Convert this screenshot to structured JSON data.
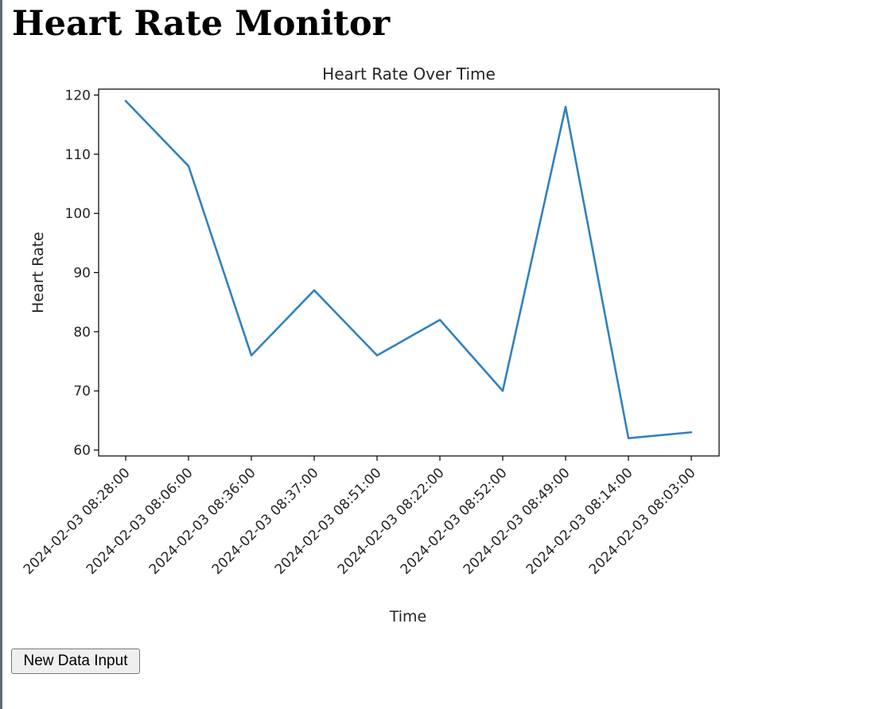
{
  "page": {
    "title": "Heart Rate Monitor"
  },
  "button": {
    "new_data_label": "New Data Input"
  },
  "chart_data": {
    "type": "line",
    "title": "Heart Rate Over Time",
    "xlabel": "Time",
    "ylabel": "Heart Rate",
    "categories": [
      "2024-02-03 08:28:00",
      "2024-02-03 08:06:00",
      "2024-02-03 08:36:00",
      "2024-02-03 08:37:00",
      "2024-02-03 08:51:00",
      "2024-02-03 08:22:00",
      "2024-02-03 08:52:00",
      "2024-02-03 08:49:00",
      "2024-02-03 08:14:00",
      "2024-02-03 08:03:00"
    ],
    "values": [
      119,
      108,
      76,
      87,
      76,
      82,
      70,
      118,
      62,
      63
    ],
    "ylim": [
      59,
      121
    ],
    "yticks": [
      60,
      70,
      80,
      90,
      100,
      110,
      120
    ],
    "grid": false,
    "line_color": "#3182bd"
  }
}
